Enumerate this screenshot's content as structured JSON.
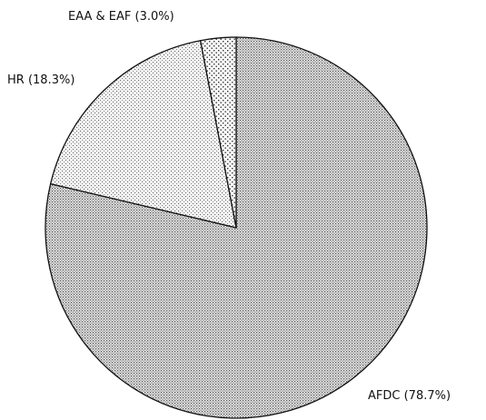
{
  "chart_data": {
    "type": "pie",
    "categories": [
      "AFDC",
      "HR",
      "EAA & EAF"
    ],
    "values": [
      78.7,
      18.3,
      3.0
    ],
    "value_labels": [
      "(78.7%)",
      "(18.3%)",
      "(3.0%)"
    ]
  }
}
